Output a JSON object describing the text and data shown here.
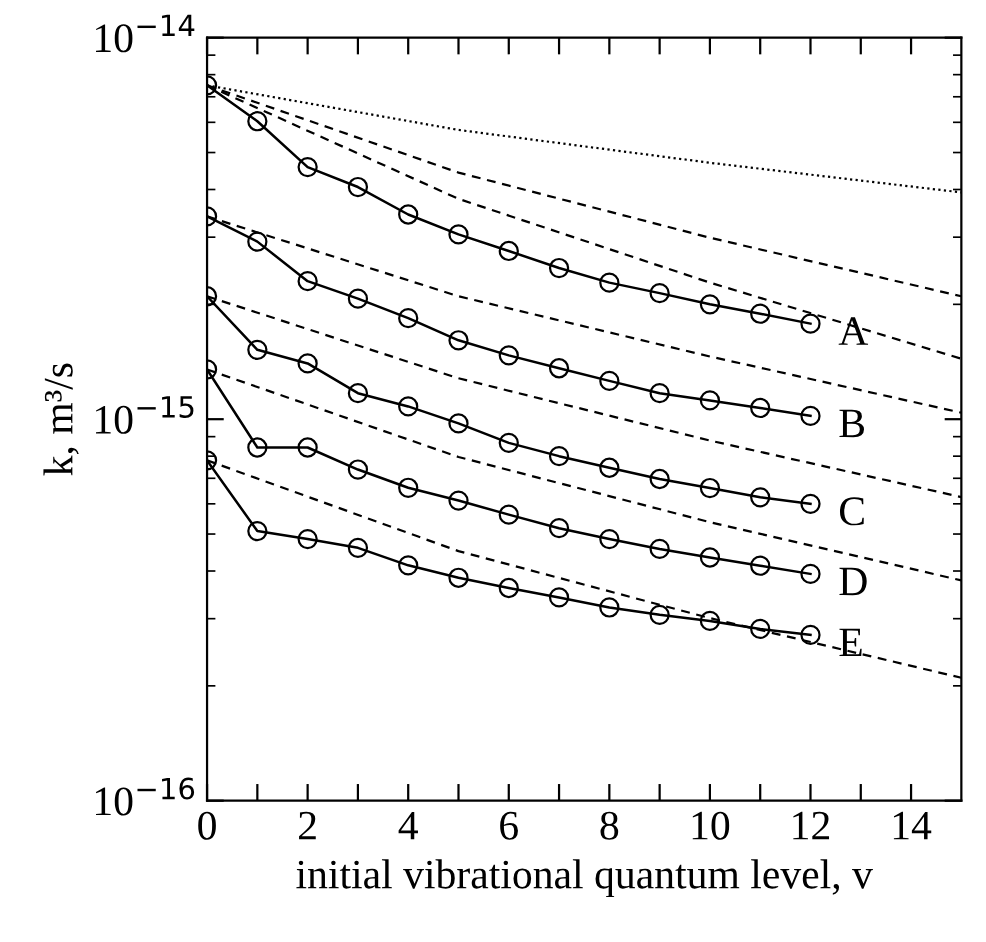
{
  "chart_data": {
    "type": "line",
    "xlabel": "initial vibrational quantum level, v",
    "ylabel": "k, m³/s",
    "log": "y",
    "xlim": [
      0,
      15
    ],
    "ylim": [
      1e-16,
      1e-14
    ],
    "xticks": [
      0,
      {
        "value": 1,
        "label": null
      },
      2,
      {
        "value": 3,
        "label": null
      },
      4,
      {
        "value": 5,
        "label": null
      },
      6,
      {
        "value": 7,
        "label": null
      },
      8,
      {
        "value": 9,
        "label": null
      },
      10,
      {
        "value": 11,
        "label": null
      },
      12,
      {
        "value": 13,
        "label": null
      },
      14
    ],
    "yticks": [
      {
        "value": 1e-16,
        "label": "10$^{−16}$"
      },
      {
        "value": 1e-15,
        "label": "10$^{−15}$"
      },
      {
        "value": 1e-14,
        "label": "10$^{−14}$"
      }
    ],
    "grid": false,
    "legend": "right",
    "series": [
      {
        "name": "A",
        "color": "#000000",
        "marker": "circle",
        "line_style": "solid",
        "x": [
          0,
          1,
          2,
          3,
          4,
          5,
          6,
          7,
          8,
          9,
          10,
          11,
          12
        ],
        "values": [
          7.5e-15,
          6.04e-15,
          4.58e-15,
          4.06e-15,
          3.44e-15,
          3.05e-15,
          2.76e-15,
          2.49e-15,
          2.28e-15,
          2.14e-15,
          2e-15,
          1.89e-15,
          1.78e-15
        ]
      },
      {
        "name": "B",
        "color": "#000000",
        "marker": "circle",
        "line_style": "solid",
        "x": [
          0,
          1,
          2,
          3,
          4,
          5,
          6,
          7,
          8,
          9,
          10,
          11,
          12
        ],
        "values": [
          3.4e-15,
          2.92e-15,
          2.3e-15,
          2.07e-15,
          1.84e-15,
          1.61e-15,
          1.47e-15,
          1.36e-15,
          1.26e-15,
          1.17e-15,
          1.12e-15,
          1.07e-15,
          1.02e-15
        ]
      },
      {
        "name": "C",
        "color": "#000000",
        "marker": "circle",
        "line_style": "solid",
        "x": [
          0,
          1,
          2,
          3,
          4,
          5,
          6,
          7,
          8,
          9,
          10,
          11,
          12
        ],
        "values": [
          2.1e-15,
          1.52e-15,
          1.4e-15,
          1.17e-15,
          1.08e-15,
          9.75e-16,
          8.67e-16,
          8e-16,
          7.46e-16,
          6.97e-16,
          6.6e-16,
          6.24e-16,
          6e-16
        ]
      },
      {
        "name": "D",
        "color": "#000000",
        "marker": "circle",
        "line_style": "solid",
        "x": [
          0,
          1,
          2,
          3,
          4,
          5,
          6,
          7,
          8,
          9,
          10,
          11,
          12
        ],
        "values": [
          1.35e-15,
          8.43e-16,
          8.43e-16,
          7.38e-16,
          6.61e-16,
          6.12e-16,
          5.62e-16,
          5.18e-16,
          4.85e-16,
          4.57e-16,
          4.34e-16,
          4.13e-16,
          3.93e-16
        ]
      },
      {
        "name": "E",
        "color": "#000000",
        "marker": "circle",
        "line_style": "solid",
        "x": [
          0,
          1,
          2,
          3,
          4,
          5,
          6,
          7,
          8,
          9,
          10,
          11,
          12
        ],
        "values": [
          7.8e-16,
          5.09e-16,
          4.85e-16,
          4.6e-16,
          4.14e-16,
          3.84e-16,
          3.61e-16,
          3.41e-16,
          3.21e-16,
          3.07e-16,
          2.96e-16,
          2.82e-16,
          2.72e-16
        ]
      },
      {
        "color": "#000000",
        "marker": "none",
        "line_style": "dotted",
        "x": [
          0,
          5,
          10,
          15
        ],
        "values": [
          7.5e-15,
          5.73e-15,
          4.7e-15,
          3.93e-15
        ]
      },
      {
        "color": "#000000",
        "marker": "none",
        "line_style": "dashed",
        "x": [
          0,
          5,
          10,
          15
        ],
        "values": [
          7.5e-15,
          4.43e-15,
          2.99e-15,
          2.1e-15
        ]
      },
      {
        "color": "#000000",
        "marker": "none",
        "line_style": "dashed",
        "x": [
          0,
          5,
          10,
          15
        ],
        "values": [
          7.5e-15,
          3.78e-15,
          2.28e-15,
          1.44e-15
        ]
      },
      {
        "color": "#000000",
        "marker": "none",
        "line_style": "dashed",
        "x": [
          0,
          5,
          10,
          15
        ],
        "values": [
          3.4e-15,
          2.1e-15,
          1.46e-15,
          1.04e-15
        ]
      },
      {
        "color": "#000000",
        "marker": "none",
        "line_style": "dashed",
        "x": [
          0,
          5,
          10,
          15
        ],
        "values": [
          2.1e-15,
          1.28e-15,
          8.79e-16,
          6.25e-16
        ]
      },
      {
        "color": "#000000",
        "marker": "none",
        "line_style": "dashed",
        "x": [
          0,
          5,
          10,
          15
        ],
        "values": [
          1.35e-15,
          7.96e-16,
          5.37e-16,
          3.78e-16
        ]
      },
      {
        "color": "#000000",
        "marker": "none",
        "line_style": "dashed",
        "x": [
          0,
          5,
          10,
          15
        ],
        "values": [
          7.8e-16,
          4.51e-16,
          3.01e-16,
          2.1e-16
        ]
      }
    ]
  }
}
